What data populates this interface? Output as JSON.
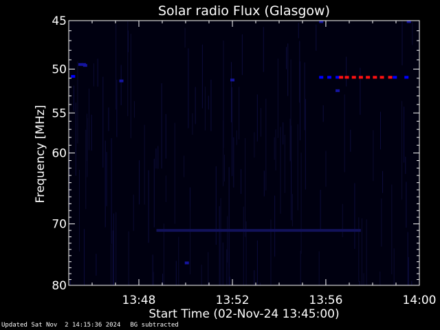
{
  "chart_data": {
    "type": "heatmap",
    "title": "Solar radio Flux (Glasgow)",
    "ylabel": "Frequency [MHz]",
    "xlabel": "Start Time (02-Nov-24 13:45:00)",
    "x_unit": "minutes",
    "xlim": [
      13.75,
      14.0
    ],
    "x_ticks": [
      {
        "label": "13:48",
        "value": 13.8
      },
      {
        "label": "13:52",
        "value": 13.8667
      },
      {
        "label": "13:56",
        "value": 13.9333
      },
      {
        "label": "14:00",
        "value": 14.0
      }
    ],
    "y_ticks": [
      45,
      50,
      55,
      60,
      70,
      80
    ],
    "ylim": [
      45,
      80
    ],
    "y_scale": "log",
    "background_color": "#000010",
    "marks": [
      {
        "time": 13.7531,
        "freq": 50.8,
        "intensity": "blue"
      },
      {
        "time": 13.7583,
        "freq": 49.5,
        "intensity": "dim-blue"
      },
      {
        "time": 13.7608,
        "freq": 49.5,
        "intensity": "dim-blue"
      },
      {
        "time": 13.7617,
        "freq": 49.6,
        "intensity": "dim-blue"
      },
      {
        "time": 13.7875,
        "freq": 51.3,
        "intensity": "dim-blue"
      },
      {
        "time": 13.93,
        "freq": 50.9,
        "intensity": "blue"
      },
      {
        "time": 13.9358,
        "freq": 50.9,
        "intensity": "blue"
      },
      {
        "time": 13.9417,
        "freq": 50.9,
        "intensity": "blue"
      },
      {
        "time": 13.9442,
        "freq": 50.9,
        "intensity": "red"
      },
      {
        "time": 13.9483,
        "freq": 50.9,
        "intensity": "red"
      },
      {
        "time": 13.9533,
        "freq": 50.9,
        "intensity": "red"
      },
      {
        "time": 13.9583,
        "freq": 50.9,
        "intensity": "red"
      },
      {
        "time": 13.9633,
        "freq": 50.9,
        "intensity": "red"
      },
      {
        "time": 13.9683,
        "freq": 50.9,
        "intensity": "red"
      },
      {
        "time": 13.9733,
        "freq": 50.9,
        "intensity": "red"
      },
      {
        "time": 13.9792,
        "freq": 50.9,
        "intensity": "red"
      },
      {
        "time": 13.9825,
        "freq": 50.9,
        "intensity": "blue"
      },
      {
        "time": 13.9908,
        "freq": 50.9,
        "intensity": "blue"
      },
      {
        "time": 13.93,
        "freq": 45.1,
        "intensity": "dim-blue"
      },
      {
        "time": 13.9925,
        "freq": 45.1,
        "intensity": "dim-blue"
      },
      {
        "time": 13.8667,
        "freq": 51.2,
        "intensity": "dim-blue"
      },
      {
        "time": 13.8342,
        "freq": 76.2,
        "intensity": "dim-blue"
      },
      {
        "time": 13.9417,
        "freq": 52.4,
        "intensity": "dim-blue"
      }
    ],
    "bands": [
      {
        "freq": 71.0,
        "time_start": 13.8125,
        "time_end": 13.9583,
        "intensity": "faint-blue"
      }
    ],
    "colors": {
      "axis": "#ffffff",
      "blue": "#0000ff",
      "dim-blue": "#1515a0",
      "faint-blue": "#12125a",
      "red": "#ff1010"
    }
  },
  "footer": {
    "updated": "Updated Sat Nov  2 14:15:36 2024",
    "note": "BG subtracted"
  }
}
